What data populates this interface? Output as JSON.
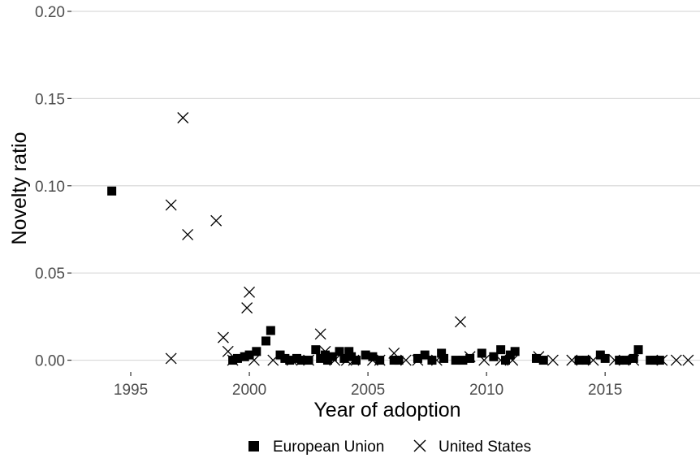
{
  "chart_data": {
    "type": "scatter",
    "title": "",
    "xlabel": "Year of adoption",
    "ylabel": "Novelty ratio",
    "xlim": [
      1992.5,
      2019
    ],
    "ylim": [
      -0.003,
      0.2
    ],
    "x_ticks": [
      1995,
      2000,
      2005,
      2010,
      2015
    ],
    "x_tick_labels": [
      "1995",
      "2000",
      "2005",
      "2010",
      "2015"
    ],
    "y_ticks": [
      0.0,
      0.05,
      0.1,
      0.15,
      0.2
    ],
    "y_tick_labels": [
      "0.00",
      "0.05",
      "0.10",
      "0.15",
      "0.20"
    ],
    "grid": true,
    "legend_position": "bottom",
    "series": [
      {
        "name": "European Union",
        "marker": "square",
        "color": "#000000",
        "points": [
          [
            1994.2,
            0.097
          ],
          [
            1999.3,
            0.0
          ],
          [
            1999.5,
            0.001
          ],
          [
            1999.8,
            0.002
          ],
          [
            2000.0,
            0.003
          ],
          [
            2000.3,
            0.005
          ],
          [
            2000.7,
            0.011
          ],
          [
            2000.9,
            0.017
          ],
          [
            2001.3,
            0.003
          ],
          [
            2001.5,
            0.001
          ],
          [
            2001.7,
            0.0
          ],
          [
            2002.0,
            0.001
          ],
          [
            2002.2,
            0.0
          ],
          [
            2002.5,
            0.0
          ],
          [
            2002.8,
            0.006
          ],
          [
            2003.0,
            0.001
          ],
          [
            2003.2,
            0.003
          ],
          [
            2003.3,
            0.0
          ],
          [
            2003.5,
            0.002
          ],
          [
            2003.8,
            0.005
          ],
          [
            2004.0,
            0.001
          ],
          [
            2004.2,
            0.005
          ],
          [
            2004.3,
            0.002
          ],
          [
            2004.5,
            0.0
          ],
          [
            2004.9,
            0.003
          ],
          [
            2005.2,
            0.002
          ],
          [
            2005.5,
            0.0
          ],
          [
            2006.1,
            0.0
          ],
          [
            2006.3,
            0.0
          ],
          [
            2007.1,
            0.001
          ],
          [
            2007.4,
            0.003
          ],
          [
            2007.7,
            0.0
          ],
          [
            2008.1,
            0.004
          ],
          [
            2008.2,
            0.001
          ],
          [
            2008.7,
            0.0
          ],
          [
            2009.0,
            0.0
          ],
          [
            2009.3,
            0.001
          ],
          [
            2009.8,
            0.004
          ],
          [
            2010.3,
            0.002
          ],
          [
            2010.6,
            0.006
          ],
          [
            2010.8,
            0.0
          ],
          [
            2011.0,
            0.003
          ],
          [
            2011.2,
            0.005
          ],
          [
            2012.1,
            0.001
          ],
          [
            2012.4,
            0.0
          ],
          [
            2013.9,
            0.0
          ],
          [
            2014.2,
            0.0
          ],
          [
            2014.8,
            0.003
          ],
          [
            2015.0,
            0.001
          ],
          [
            2015.6,
            0.0
          ],
          [
            2015.9,
            0.0
          ],
          [
            2016.2,
            0.001
          ],
          [
            2016.4,
            0.006
          ],
          [
            2016.9,
            0.0
          ],
          [
            2017.1,
            0.0
          ],
          [
            2017.3,
            0.0
          ]
        ]
      },
      {
        "name": "United States",
        "marker": "cross",
        "color": "#000000",
        "points": [
          [
            1996.7,
            0.089
          ],
          [
            1996.7,
            0.001
          ],
          [
            1997.2,
            0.139
          ],
          [
            1997.4,
            0.072
          ],
          [
            1998.6,
            0.08
          ],
          [
            1998.9,
            0.013
          ],
          [
            1999.1,
            0.005
          ],
          [
            1999.3,
            0.0
          ],
          [
            1999.9,
            0.03
          ],
          [
            2000.0,
            0.039
          ],
          [
            2000.2,
            0.0
          ],
          [
            2001.0,
            0.0
          ],
          [
            2001.8,
            0.0
          ],
          [
            2002.5,
            0.0
          ],
          [
            2003.0,
            0.015
          ],
          [
            2003.2,
            0.005
          ],
          [
            2003.6,
            0.0
          ],
          [
            2004.1,
            0.0
          ],
          [
            2004.4,
            0.0
          ],
          [
            2005.2,
            0.0
          ],
          [
            2005.5,
            0.0
          ],
          [
            2006.1,
            0.004
          ],
          [
            2006.6,
            0.0
          ],
          [
            2007.1,
            0.0
          ],
          [
            2007.9,
            0.0
          ],
          [
            2008.9,
            0.022
          ],
          [
            2009.3,
            0.002
          ],
          [
            2009.9,
            0.0
          ],
          [
            2010.6,
            0.0
          ],
          [
            2011.1,
            0.0
          ],
          [
            2012.2,
            0.002
          ],
          [
            2012.8,
            0.0
          ],
          [
            2013.6,
            0.0
          ],
          [
            2014.5,
            0.0
          ],
          [
            2015.4,
            0.0
          ],
          [
            2016.2,
            0.0
          ],
          [
            2017.4,
            0.0
          ],
          [
            2018.0,
            0.0
          ],
          [
            2018.5,
            0.0
          ]
        ]
      }
    ]
  }
}
